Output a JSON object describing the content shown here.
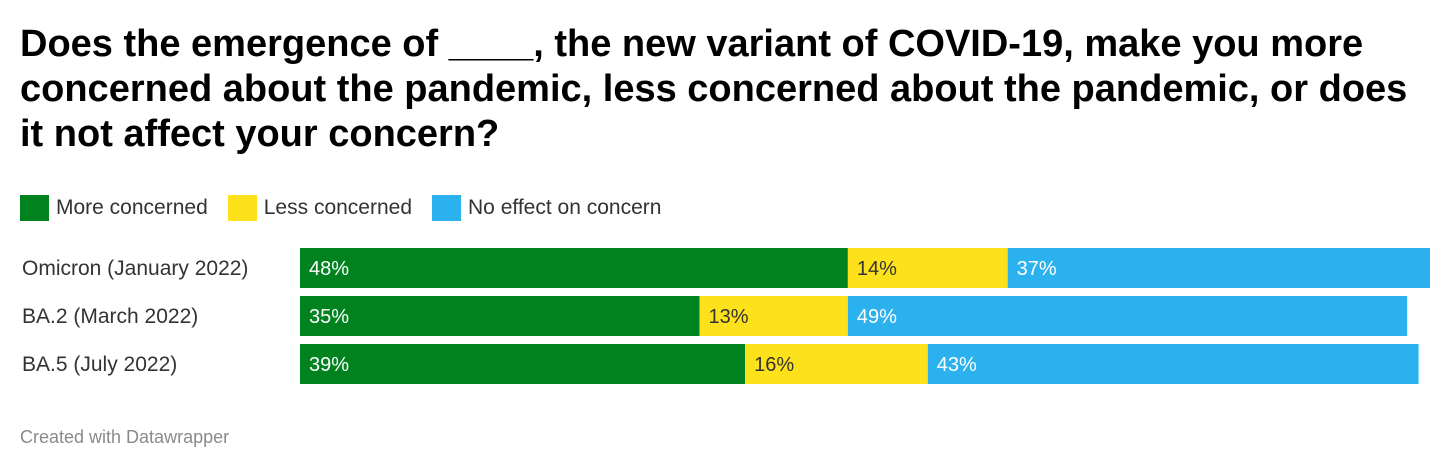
{
  "title": "Does the emergence of ____, the new variant of COVID-19, make you more concerned about the pandemic, less concerned about the pandemic, or does it not affect your concern?",
  "footer": "Created with Datawrapper",
  "chart_data": {
    "type": "bar",
    "orientation": "horizontal",
    "stacked": true,
    "categories": [
      "Omicron (January 2022)",
      "BA.2 (March 2022)",
      "BA.5 (July 2022)"
    ],
    "series": [
      {
        "name": "More concerned",
        "values": [
          48,
          35,
          39
        ],
        "color": "#00821e",
        "label_color": "#ffffff"
      },
      {
        "name": "Less concerned",
        "values": [
          14,
          13,
          16
        ],
        "color": "#fde11a",
        "label_color": "#333333"
      },
      {
        "name": "No effect on concern",
        "values": [
          37,
          49,
          43
        ],
        "color": "#2cb1ef",
        "label_color": "#ffffff"
      }
    ],
    "value_suffix": "%",
    "xlim": [
      0,
      99
    ],
    "legend_position": "top-left",
    "grid": false
  }
}
